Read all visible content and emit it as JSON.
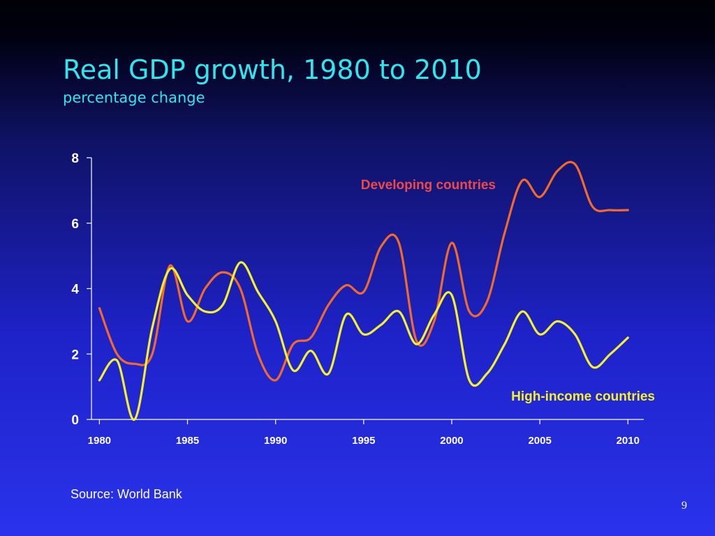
{
  "slide": {
    "title": "Real GDP growth, 1980 to 2010",
    "subtitle": "percentage change",
    "source": "Source: World Bank",
    "page_number": "9"
  },
  "colors": {
    "title": "#2fe6ee",
    "developing": "#f2692a",
    "high_income": "#f4f02c",
    "developing_label": "#f04848",
    "high_income_label": "#f4f02c",
    "axis": "#ffffff"
  },
  "chart_data": {
    "type": "line",
    "title": "Real GDP growth, 1980 to 2010",
    "subtitle": "percentage change",
    "xlabel": "",
    "ylabel": "",
    "xlim": [
      1980,
      2010
    ],
    "ylim": [
      0,
      8
    ],
    "x_ticks": [
      1980,
      1985,
      1990,
      1995,
      2000,
      2005,
      2010
    ],
    "y_ticks": [
      0,
      2,
      4,
      6,
      8
    ],
    "grid": false,
    "legend": "inline labels",
    "x": [
      1980,
      1981,
      1982,
      1983,
      1984,
      1985,
      1986,
      1987,
      1988,
      1989,
      1990,
      1991,
      1992,
      1993,
      1994,
      1995,
      1996,
      1997,
      1998,
      1999,
      2000,
      2001,
      2002,
      2003,
      2004,
      2005,
      2006,
      2007,
      2008,
      2009,
      2010
    ],
    "series": [
      {
        "name": "Developing countries",
        "values": [
          3.4,
          2.0,
          1.7,
          2.0,
          4.7,
          3.0,
          4.0,
          4.5,
          4.0,
          2.0,
          1.2,
          2.3,
          2.5,
          3.5,
          4.1,
          3.9,
          5.3,
          5.4,
          2.4,
          3.0,
          5.4,
          3.3,
          3.6,
          5.7,
          7.3,
          6.8,
          7.6,
          7.8,
          6.5,
          6.4,
          6.4
        ]
      },
      {
        "name": "High-income countries",
        "values": [
          1.2,
          1.8,
          0.0,
          2.8,
          4.6,
          3.8,
          3.3,
          3.5,
          4.8,
          3.9,
          3.0,
          1.5,
          2.1,
          1.4,
          3.2,
          2.6,
          2.9,
          3.3,
          2.3,
          3.2,
          3.8,
          1.2,
          1.4,
          2.3,
          3.3,
          2.6,
          3.0,
          2.6,
          1.6,
          2.0,
          2.5
        ]
      }
    ]
  }
}
